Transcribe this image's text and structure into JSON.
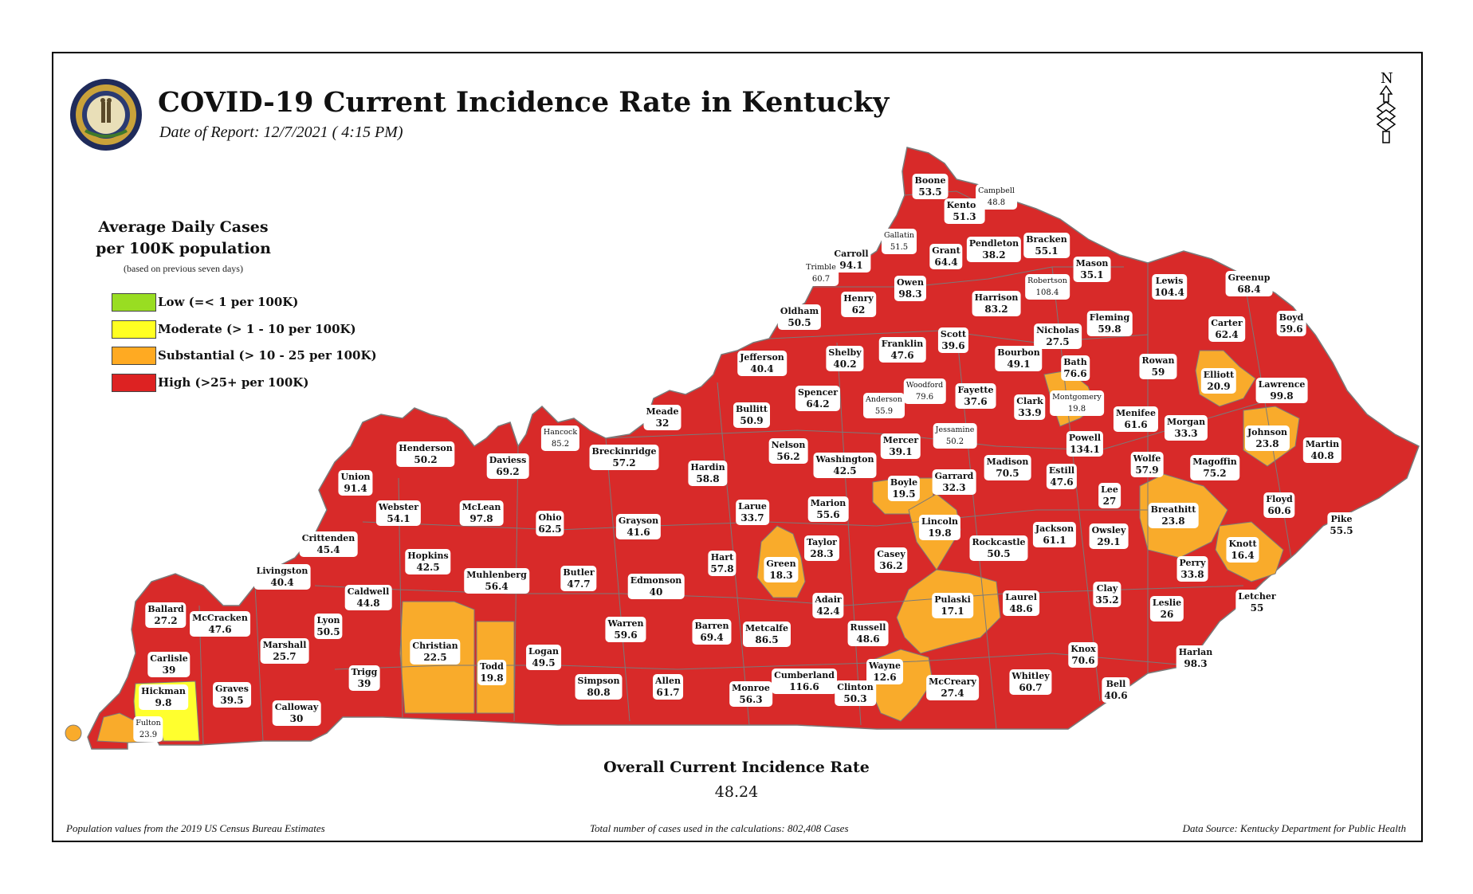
{
  "header": {
    "title": "COVID-19 Current Incidence Rate in Kentucky",
    "date_of_report": "Date of Report: 12/7/2021 ( 4:15 PM)",
    "north_label": "N"
  },
  "legend": {
    "title_line1": "Average Daily Cases",
    "title_line2": "per 100K population",
    "note": "(based on previous seven days)",
    "items": [
      {
        "label": "Low (=< 1 per 100K)",
        "color": "#99dd22"
      },
      {
        "label": "Moderate (> 1 - 10 per 100K)",
        "color": "#ffff22"
      },
      {
        "label": "Substantial (> 10 - 25 per 100K)",
        "color": "#ffaa22"
      },
      {
        "label": "High (>25+ per 100K)",
        "color": "#dd2222"
      }
    ]
  },
  "colors": {
    "high": "#d82a29",
    "substantial": "#f9ab2b",
    "moderate": "#ffff2e",
    "border": "#7a7a7a"
  },
  "counties": [
    {
      "name": "Boone",
      "value": "53.5"
    },
    {
      "name": "Kenton",
      "value": "51.3"
    },
    {
      "name": "Campbell",
      "value": "48.8",
      "small": true
    },
    {
      "name": "Gallatin",
      "value": "51.5",
      "small": true
    },
    {
      "name": "Carroll",
      "value": "94.1"
    },
    {
      "name": "Trimble",
      "value": "60.7",
      "small": true
    },
    {
      "name": "Grant",
      "value": "64.4"
    },
    {
      "name": "Pendleton",
      "value": "38.2"
    },
    {
      "name": "Bracken",
      "value": "55.1"
    },
    {
      "name": "Mason",
      "value": "35.1"
    },
    {
      "name": "Robertson",
      "value": "108.4",
      "small": true
    },
    {
      "name": "Lewis",
      "value": "104.4"
    },
    {
      "name": "Greenup",
      "value": "68.4"
    },
    {
      "name": "Boyd",
      "value": "59.6"
    },
    {
      "name": "Owen",
      "value": "98.3"
    },
    {
      "name": "Henry",
      "value": "62"
    },
    {
      "name": "Oldham",
      "value": "50.5"
    },
    {
      "name": "Harrison",
      "value": "83.2"
    },
    {
      "name": "Nicholas",
      "value": "27.5"
    },
    {
      "name": "Fleming",
      "value": "59.8"
    },
    {
      "name": "Carter",
      "value": "62.4"
    },
    {
      "name": "Scott",
      "value": "39.6"
    },
    {
      "name": "Franklin",
      "value": "47.6"
    },
    {
      "name": "Shelby",
      "value": "40.2"
    },
    {
      "name": "Jefferson",
      "value": "40.4"
    },
    {
      "name": "Bourbon",
      "value": "49.1"
    },
    {
      "name": "Bath",
      "value": "76.6"
    },
    {
      "name": "Rowan",
      "value": "59"
    },
    {
      "name": "Elliott",
      "value": "20.9",
      "tier": "substantial"
    },
    {
      "name": "Lawrence",
      "value": "99.8"
    },
    {
      "name": "Woodford",
      "value": "79.6",
      "small": true
    },
    {
      "name": "Fayette",
      "value": "37.6"
    },
    {
      "name": "Montgomery",
      "value": "19.8",
      "small": true,
      "tier": "substantial"
    },
    {
      "name": "Spencer",
      "value": "64.2"
    },
    {
      "name": "Anderson",
      "value": "55.9",
      "small": true
    },
    {
      "name": "Clark",
      "value": "33.9"
    },
    {
      "name": "Menifee",
      "value": "61.6"
    },
    {
      "name": "Morgan",
      "value": "33.3"
    },
    {
      "name": "Johnson",
      "value": "23.8",
      "tier": "substantial"
    },
    {
      "name": "Meade",
      "value": "32"
    },
    {
      "name": "Bullitt",
      "value": "50.9"
    },
    {
      "name": "Hancock",
      "value": "85.2",
      "small": true
    },
    {
      "name": "Jessamine",
      "value": "50.2",
      "small": true
    },
    {
      "name": "Mercer",
      "value": "39.1"
    },
    {
      "name": "Powell",
      "value": "134.1"
    },
    {
      "name": "Martin",
      "value": "40.8"
    },
    {
      "name": "Henderson",
      "value": "50.2"
    },
    {
      "name": "Breckinridge",
      "value": "57.2"
    },
    {
      "name": "Nelson",
      "value": "56.2"
    },
    {
      "name": "Washington",
      "value": "42.5"
    },
    {
      "name": "Madison",
      "value": "70.5"
    },
    {
      "name": "Wolfe",
      "value": "57.9"
    },
    {
      "name": "Magoffin",
      "value": "75.2"
    },
    {
      "name": "Daviess",
      "value": "69.2"
    },
    {
      "name": "Hardin",
      "value": "58.8"
    },
    {
      "name": "Boyle",
      "value": "19.5",
      "tier": "substantial"
    },
    {
      "name": "Garrard",
      "value": "32.3"
    },
    {
      "name": "Estill",
      "value": "47.6"
    },
    {
      "name": "Union",
      "value": "91.4"
    },
    {
      "name": "Lee",
      "value": "27"
    },
    {
      "name": "Breathitt",
      "value": "23.8",
      "tier": "substantial"
    },
    {
      "name": "Floyd",
      "value": "60.6"
    },
    {
      "name": "Webster",
      "value": "54.1"
    },
    {
      "name": "McLean",
      "value": "97.8"
    },
    {
      "name": "Larue",
      "value": "33.7"
    },
    {
      "name": "Marion",
      "value": "55.6"
    },
    {
      "name": "Ohio",
      "value": "62.5"
    },
    {
      "name": "Grayson",
      "value": "41.6"
    },
    {
      "name": "Lincoln",
      "value": "19.8",
      "tier": "substantial"
    },
    {
      "name": "Jackson",
      "value": "61.1"
    },
    {
      "name": "Owsley",
      "value": "29.1"
    },
    {
      "name": "Pike",
      "value": "55.5"
    },
    {
      "name": "Crittenden",
      "value": "45.4"
    },
    {
      "name": "Knott",
      "value": "16.4",
      "tier": "substantial"
    },
    {
      "name": "Rockcastle",
      "value": "50.5"
    },
    {
      "name": "Taylor",
      "value": "28.3"
    },
    {
      "name": "Hopkins",
      "value": "42.5"
    },
    {
      "name": "Casey",
      "value": "36.2"
    },
    {
      "name": "Hart",
      "value": "57.8"
    },
    {
      "name": "Green",
      "value": "18.3",
      "tier": "substantial"
    },
    {
      "name": "Perry",
      "value": "33.8"
    },
    {
      "name": "Livingston",
      "value": "40.4"
    },
    {
      "name": "Butler",
      "value": "47.7"
    },
    {
      "name": "Muhlenberg",
      "value": "56.4"
    },
    {
      "name": "Edmonson",
      "value": "40"
    },
    {
      "name": "Clay",
      "value": "35.2"
    },
    {
      "name": "Caldwell",
      "value": "44.8"
    },
    {
      "name": "Laurel",
      "value": "48.6"
    },
    {
      "name": "Pulaski",
      "value": "17.1",
      "tier": "substantial"
    },
    {
      "name": "Letcher",
      "value": "55"
    },
    {
      "name": "Leslie",
      "value": "26"
    },
    {
      "name": "Ballard",
      "value": "27.2"
    },
    {
      "name": "Adair",
      "value": "42.4"
    },
    {
      "name": "McCracken",
      "value": "47.6"
    },
    {
      "name": "Lyon",
      "value": "50.5"
    },
    {
      "name": "Warren",
      "value": "59.6"
    },
    {
      "name": "Russell",
      "value": "48.6"
    },
    {
      "name": "Barren",
      "value": "69.4"
    },
    {
      "name": "Metcalfe",
      "value": "86.5"
    },
    {
      "name": "Marshall",
      "value": "25.7"
    },
    {
      "name": "Christian",
      "value": "22.5",
      "tier": "substantial"
    },
    {
      "name": "Logan",
      "value": "49.5"
    },
    {
      "name": "Knox",
      "value": "70.6"
    },
    {
      "name": "Harlan",
      "value": "98.3"
    },
    {
      "name": "Carlisle",
      "value": "39"
    },
    {
      "name": "Todd",
      "value": "19.8",
      "tier": "substantial"
    },
    {
      "name": "Trigg",
      "value": "39"
    },
    {
      "name": "Wayne",
      "value": "12.6",
      "tier": "substantial"
    },
    {
      "name": "Whitley",
      "value": "60.7"
    },
    {
      "name": "Cumberland",
      "value": "116.6"
    },
    {
      "name": "Allen",
      "value": "61.7"
    },
    {
      "name": "Simpson",
      "value": "80.8"
    },
    {
      "name": "Hickman",
      "value": "9.8",
      "tier": "moderate"
    },
    {
      "name": "Graves",
      "value": "39.5"
    },
    {
      "name": "Monroe",
      "value": "56.3"
    },
    {
      "name": "Clinton",
      "value": "50.3"
    },
    {
      "name": "McCreary",
      "value": "27.4"
    },
    {
      "name": "Bell",
      "value": "40.6"
    },
    {
      "name": "Calloway",
      "value": "30"
    },
    {
      "name": "Fulton",
      "value": "23.9",
      "small": true,
      "tier": "substantial"
    }
  ],
  "overall": {
    "title": "Overall Current Incidence Rate",
    "value": "48.24"
  },
  "footer": {
    "left": "Population values from the 2019 US Census Bureau Estimates",
    "center": "Total number of cases used in the calculations: 802,408 Cases",
    "right": "Data Source: Kentucky Department for Public Health"
  }
}
